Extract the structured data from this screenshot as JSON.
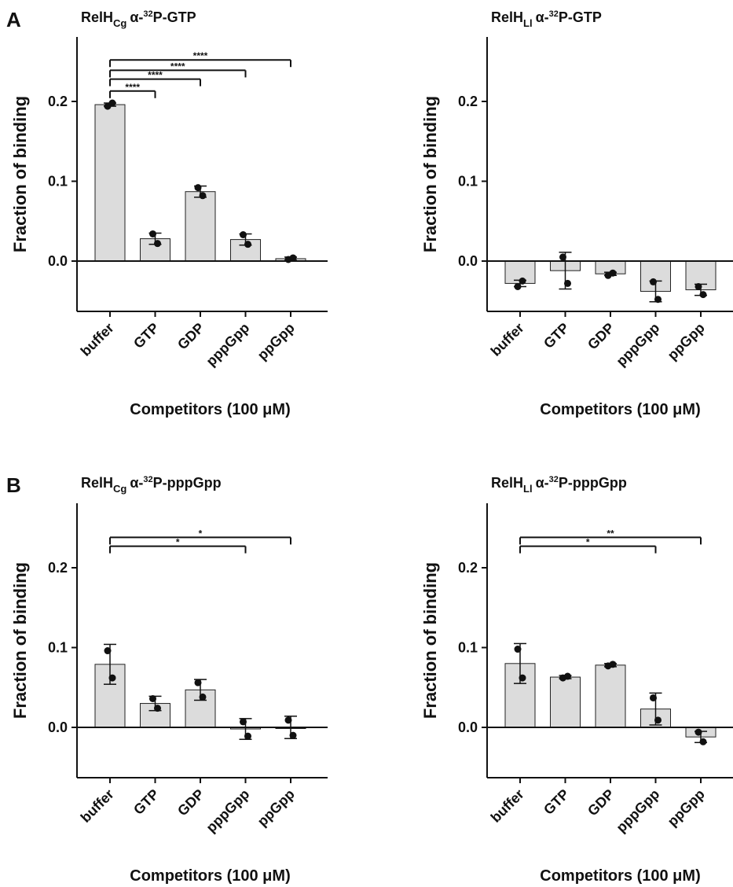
{
  "chart_data": [
    {
      "type": "bar",
      "panel_label": "A",
      "title": {
        "main": "RelH",
        "sub": "Cg",
        "alpha": "α-",
        "sup": "32",
        "rest": "P-GTP"
      },
      "ylabel": "Fraction of binding",
      "xlabel": "Competitors (100 μM)",
      "categories": [
        "buffer",
        "GTP",
        "GDP",
        "pppGpp",
        "ppGpp"
      ],
      "values": [
        0.196,
        0.028,
        0.087,
        0.027,
        0.003
      ],
      "errors": [
        0.002,
        0.007,
        0.007,
        0.007,
        0.002
      ],
      "points": [
        [
          0.194,
          0.198
        ],
        [
          0.034,
          0.022
        ],
        [
          0.092,
          0.082
        ],
        [
          0.033,
          0.021
        ],
        [
          0.002,
          0.004
        ]
      ],
      "ylim": [
        -0.06,
        0.25
      ],
      "yticks": [
        "0.0",
        "0.1",
        "0.2"
      ],
      "ytick_values": [
        0.0,
        0.1,
        0.2
      ],
      "significance": [
        {
          "from": 0,
          "to": 1,
          "y": 0.213,
          "label": "****"
        },
        {
          "from": 0,
          "to": 2,
          "y": 0.228,
          "label": "****"
        },
        {
          "from": 0,
          "to": 3,
          "y": 0.239,
          "label": "****"
        },
        {
          "from": 0,
          "to": 4,
          "y": 0.252,
          "label": "****"
        }
      ]
    },
    {
      "type": "bar",
      "panel_label": "",
      "title": {
        "main": "RelH",
        "sub": "Ll",
        "alpha": "α-",
        "sup": "32",
        "rest": "P-GTP"
      },
      "ylabel": "Fraction of binding",
      "xlabel": "Competitors (100 μM)",
      "categories": [
        "buffer",
        "GTP",
        "GDP",
        "pppGpp",
        "ppGpp"
      ],
      "values": [
        -0.028,
        -0.012,
        -0.016,
        -0.038,
        -0.036
      ],
      "errors": [
        0.004,
        0.023,
        0.002,
        0.013,
        0.007
      ],
      "points": [
        [
          -0.032,
          -0.025
        ],
        [
          0.005,
          -0.028
        ],
        [
          -0.018,
          -0.015
        ],
        [
          -0.026,
          -0.048
        ],
        [
          -0.032,
          -0.042
        ]
      ],
      "ylim": [
        -0.06,
        0.25
      ],
      "yticks": [
        "0.0",
        "0.1",
        "0.2"
      ],
      "ytick_values": [
        0.0,
        0.1,
        0.2
      ],
      "significance": []
    },
    {
      "type": "bar",
      "panel_label": "B",
      "title": {
        "main": "RelH",
        "sub": "Cg",
        "alpha": "α-",
        "sup": "32",
        "rest": "P-pppGpp"
      },
      "ylabel": "Fraction of binding",
      "xlabel": "Competitors (100 μM)",
      "categories": [
        "buffer",
        "GTP",
        "GDP",
        "pppGpp",
        "ppGpp"
      ],
      "values": [
        0.079,
        0.03,
        0.047,
        -0.002,
        0.0
      ],
      "errors": [
        0.025,
        0.009,
        0.013,
        0.013,
        0.014
      ],
      "points": [
        [
          0.096,
          0.062
        ],
        [
          0.036,
          0.024
        ],
        [
          0.056,
          0.038
        ],
        [
          0.007,
          -0.011
        ],
        [
          0.009,
          -0.01
        ]
      ],
      "ylim": [
        -0.06,
        0.25
      ],
      "yticks": [
        "0.0",
        "0.1",
        "0.2"
      ],
      "ytick_values": [
        0.0,
        0.1,
        0.2
      ],
      "significance": [
        {
          "from": 0,
          "to": 3,
          "y": 0.227,
          "label": "*"
        },
        {
          "from": 0,
          "to": 4,
          "y": 0.238,
          "label": "*"
        }
      ]
    },
    {
      "type": "bar",
      "panel_label": "",
      "title": {
        "main": "RelH",
        "sub": "Ll",
        "alpha": "α-",
        "sup": "32",
        "rest": "P-pppGpp"
      },
      "ylabel": "Fraction of binding",
      "xlabel": "Competitors (100 μM)",
      "categories": [
        "buffer",
        "GTP",
        "GDP",
        "pppGpp",
        "ppGpp"
      ],
      "values": [
        0.08,
        0.063,
        0.078,
        0.023,
        -0.012
      ],
      "errors": [
        0.025,
        0.002,
        0.002,
        0.02,
        0.007
      ],
      "points": [
        [
          0.098,
          0.062
        ],
        [
          0.062,
          0.064
        ],
        [
          0.077,
          0.079
        ],
        [
          0.037,
          0.009
        ],
        [
          -0.006,
          -0.018
        ]
      ],
      "ylim": [
        -0.06,
        0.25
      ],
      "yticks": [
        "0.0",
        "0.1",
        "0.2"
      ],
      "ytick_values": [
        0.0,
        0.1,
        0.2
      ],
      "significance": [
        {
          "from": 0,
          "to": 3,
          "y": 0.227,
          "label": "*"
        },
        {
          "from": 0,
          "to": 4,
          "y": 0.238,
          "label": "**"
        }
      ]
    }
  ],
  "colors": {
    "bar_fill": "#dcdcdc",
    "bar_stroke": "#222222",
    "ink": "#111111"
  }
}
